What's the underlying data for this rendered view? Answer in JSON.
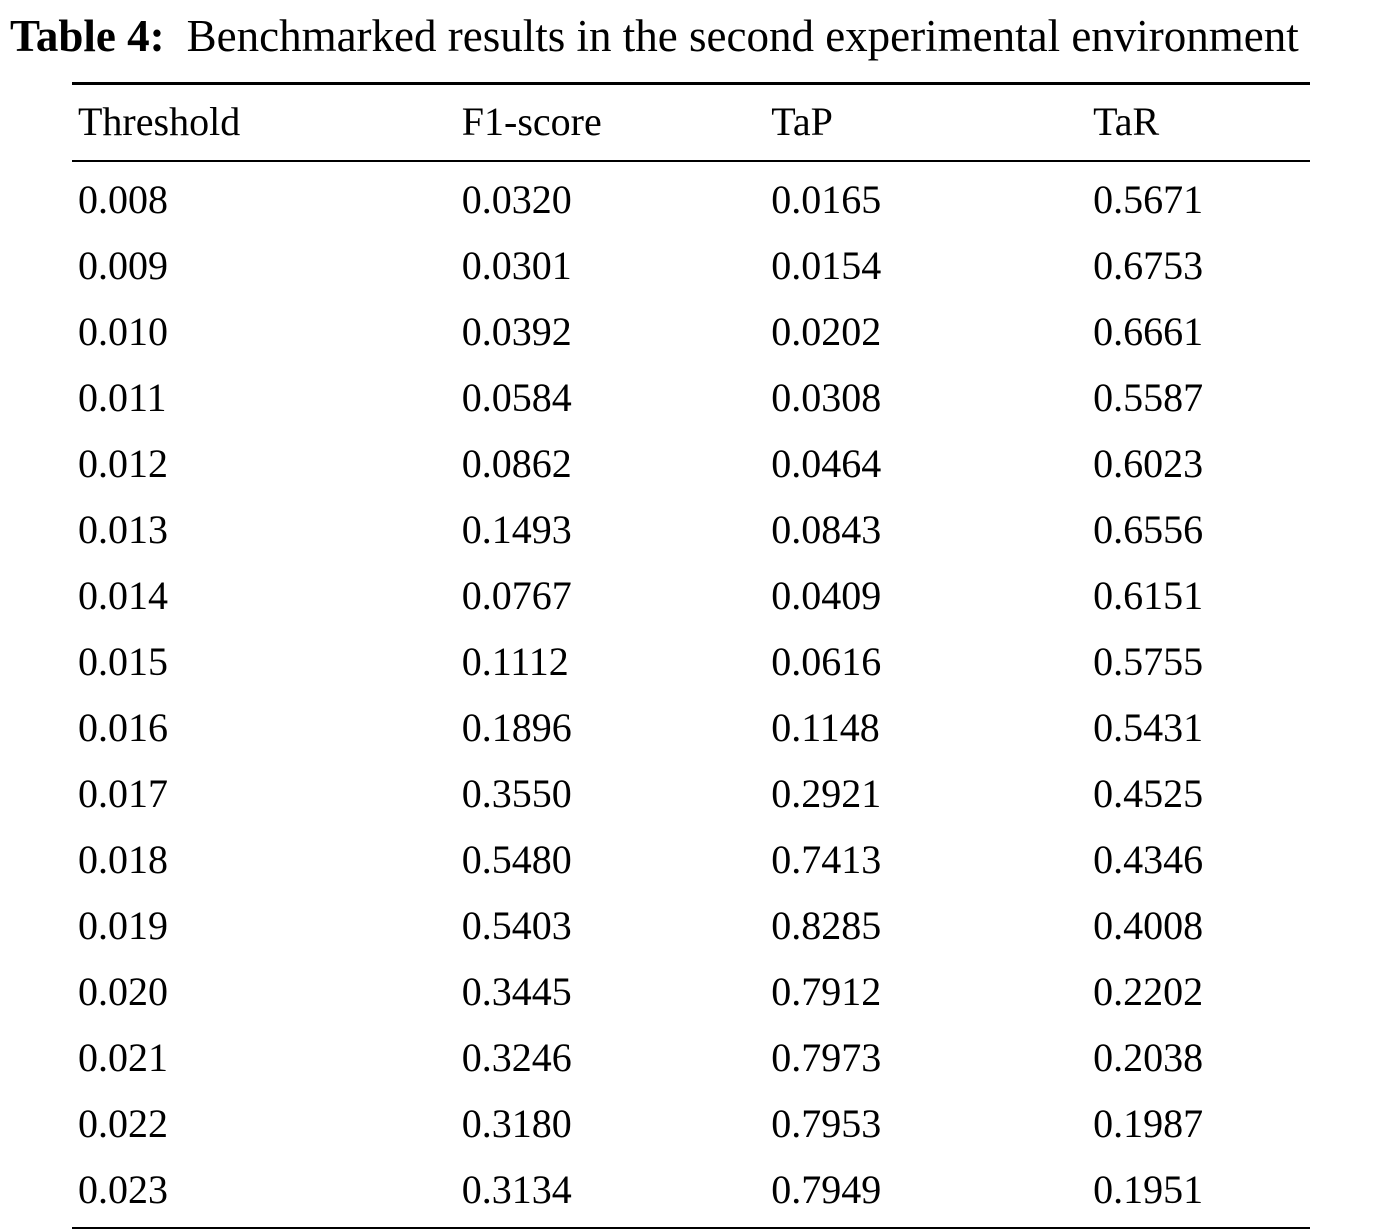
{
  "caption": {
    "label": "Table 4:",
    "text": "Benchmarked results in the second experimental environment"
  },
  "table": {
    "columns": [
      "Threshold",
      "F1-score",
      "TaP",
      "TaR"
    ],
    "rows": [
      [
        "0.008",
        "0.0320",
        "0.0165",
        "0.5671"
      ],
      [
        "0.009",
        "0.0301",
        "0.0154",
        "0.6753"
      ],
      [
        "0.010",
        "0.0392",
        "0.0202",
        "0.6661"
      ],
      [
        "0.011",
        "0.0584",
        "0.0308",
        "0.5587"
      ],
      [
        "0.012",
        "0.0862",
        "0.0464",
        "0.6023"
      ],
      [
        "0.013",
        "0.1493",
        "0.0843",
        "0.6556"
      ],
      [
        "0.014",
        "0.0767",
        "0.0409",
        "0.6151"
      ],
      [
        "0.015",
        "0.1112",
        "0.0616",
        "0.5755"
      ],
      [
        "0.016",
        "0.1896",
        "0.1148",
        "0.5431"
      ],
      [
        "0.017",
        "0.3550",
        "0.2921",
        "0.4525"
      ],
      [
        "0.018",
        "0.5480",
        "0.7413",
        "0.4346"
      ],
      [
        "0.019",
        "0.5403",
        "0.8285",
        "0.4008"
      ],
      [
        "0.020",
        "0.3445",
        "0.7912",
        "0.2202"
      ],
      [
        "0.021",
        "0.3246",
        "0.7973",
        "0.2038"
      ],
      [
        "0.022",
        "0.3180",
        "0.7953",
        "0.1987"
      ],
      [
        "0.023",
        "0.3134",
        "0.7949",
        "0.1951"
      ]
    ]
  },
  "chart_data": {
    "type": "table",
    "title": "Table 4: Benchmarked results in the second experimental environment",
    "columns": [
      "Threshold",
      "F1-score",
      "TaP",
      "TaR"
    ],
    "rows": [
      [
        0.008,
        0.032,
        0.0165,
        0.5671
      ],
      [
        0.009,
        0.0301,
        0.0154,
        0.6753
      ],
      [
        0.01,
        0.0392,
        0.0202,
        0.6661
      ],
      [
        0.011,
        0.0584,
        0.0308,
        0.5587
      ],
      [
        0.012,
        0.0862,
        0.0464,
        0.6023
      ],
      [
        0.013,
        0.1493,
        0.0843,
        0.6556
      ],
      [
        0.014,
        0.0767,
        0.0409,
        0.6151
      ],
      [
        0.015,
        0.1112,
        0.0616,
        0.5755
      ],
      [
        0.016,
        0.1896,
        0.1148,
        0.5431
      ],
      [
        0.017,
        0.355,
        0.2921,
        0.4525
      ],
      [
        0.018,
        0.548,
        0.7413,
        0.4346
      ],
      [
        0.019,
        0.5403,
        0.8285,
        0.4008
      ],
      [
        0.02,
        0.3445,
        0.7912,
        0.2202
      ],
      [
        0.021,
        0.3246,
        0.7973,
        0.2038
      ],
      [
        0.022,
        0.318,
        0.7953,
        0.1987
      ],
      [
        0.023,
        0.3134,
        0.7949,
        0.1951
      ]
    ]
  }
}
